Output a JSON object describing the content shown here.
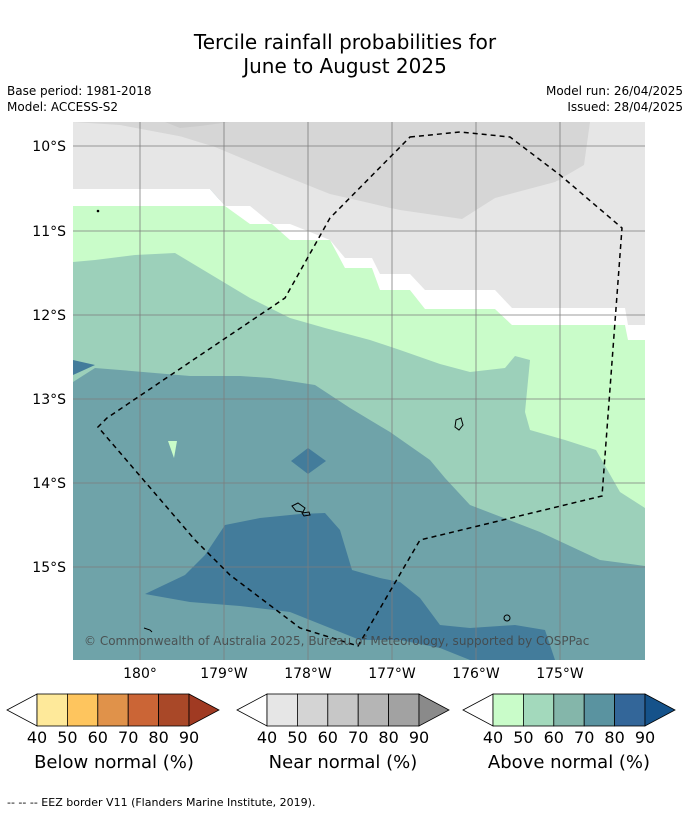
{
  "header": {
    "title_line1": "Tercile rainfall probabilities for",
    "title_line2": "June to August 2025",
    "base_period": "Base period: 1981-2018",
    "model": "Model: ACCESS-S2",
    "model_run": "Model run: 26/04/2025",
    "issued": "Issued: 28/04/2025"
  },
  "map": {
    "copyright": "© Commonwealth of Australia 2025, Bureau of Meteorology, supported by COSPPac",
    "lat_labels": [
      "10°S",
      "11°S",
      "12°S",
      "13°S",
      "14°S",
      "15°S"
    ],
    "lon_labels": [
      "180°",
      "179°W",
      "178°W",
      "177°W",
      "176°W",
      "175°W"
    ]
  },
  "legends": [
    {
      "title": "Below normal (%)",
      "ticks": [
        "40",
        "50",
        "60",
        "70",
        "80",
        "90"
      ],
      "colors": [
        "#ffffff",
        "#fee99a",
        "#fec55e",
        "#e0924a",
        "#cb6536",
        "#a94828",
        "#a03a22"
      ]
    },
    {
      "title": "Near normal (%)",
      "ticks": [
        "40",
        "50",
        "60",
        "70",
        "80",
        "90"
      ],
      "colors": [
        "#ffffff",
        "#e6e6e6",
        "#d4d4d4",
        "#c7c7c7",
        "#b5b5b5",
        "#a2a2a2",
        "#8a8a8a"
      ]
    },
    {
      "title": "Above normal (%)",
      "ticks": [
        "40",
        "50",
        "60",
        "70",
        "80",
        "90"
      ],
      "colors": [
        "#ffffff",
        "#c9fcc9",
        "#a3d9bc",
        "#84b6aa",
        "#5a93a0",
        "#336699",
        "#15528a"
      ]
    }
  ],
  "footnote": "--  --  -- EEZ border V11 (Flanders Marine Institute, 2019)."
}
